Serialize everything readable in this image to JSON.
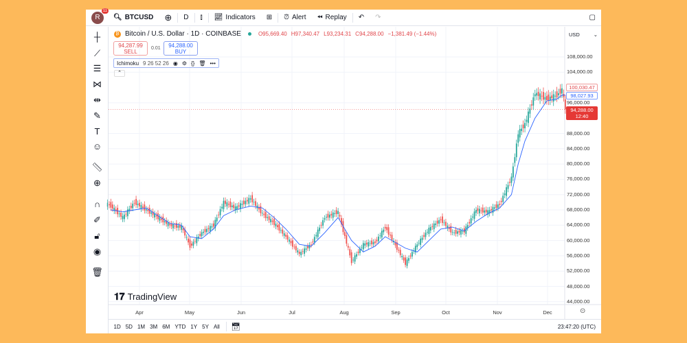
{
  "topbar": {
    "avatar_letter": "R",
    "notifications": "11",
    "symbol": "BTCUSD",
    "interval": "D",
    "indicators": "Indicators",
    "alert": "Alert",
    "replay": "Replay"
  },
  "legend": {
    "title": "Bitcoin / U.S. Dollar · 1D · COINBASE",
    "open": "O95,669.40",
    "high": "H97,340.47",
    "low": "L93,234.31",
    "close": "C94,288.00",
    "change": "−1,381.49 (−1.44%)"
  },
  "trade": {
    "sell_price": "94,287.99",
    "sell_label": "SELL",
    "spread": "0.01",
    "buy_price": "94,288.00",
    "buy_label": "BUY"
  },
  "indicator": {
    "name": "Ichimoku",
    "params": "9 26 52 26"
  },
  "axis": {
    "currency": "USD",
    "labels": [
      "108,000.00",
      "104,000.00",
      "96,000.00",
      "88,000.00",
      "84,000.00",
      "80,000.00",
      "76,000.00",
      "72,000.00",
      "68,000.00",
      "64,000.00",
      "60,000.00",
      "56,000.00",
      "52,000.00",
      "48,000.00",
      "44,000.00"
    ],
    "price_labels": {
      "red_line": "100,030.47",
      "blue_line": "98,027.93",
      "last": "94,288.00",
      "countdown": "12:40"
    }
  },
  "months": [
    "Apr",
    "May",
    "Jun",
    "Jul",
    "Aug",
    "Sep",
    "Oct",
    "Nov",
    "Dec"
  ],
  "bottom": {
    "ranges": [
      "1D",
      "5D",
      "1M",
      "3M",
      "6M",
      "YTD",
      "1Y",
      "5Y",
      "All"
    ],
    "clock": "23:47:20 (UTC)"
  },
  "logo": "TradingView",
  "colors": {
    "up": "#26a69a",
    "down": "#ef5350",
    "ichimoku": "#2962ff",
    "accent": "#2962ff"
  },
  "chart_data": {
    "type": "candlestick",
    "symbol": "BTCUSD",
    "ylim": [
      44000,
      110000
    ],
    "dates": [
      "2024-03-15",
      "2024-03-22",
      "2024-03-29",
      "2024-04-05",
      "2024-04-12",
      "2024-04-19",
      "2024-04-26",
      "2024-05-01",
      "2024-05-08",
      "2024-05-15",
      "2024-05-21",
      "2024-05-28",
      "2024-06-06",
      "2024-06-13",
      "2024-06-20",
      "2024-06-27",
      "2024-07-05",
      "2024-07-12",
      "2024-07-20",
      "2024-07-28",
      "2024-08-05",
      "2024-08-12",
      "2024-08-19",
      "2024-08-25",
      "2024-09-06",
      "2024-09-13",
      "2024-09-20",
      "2024-09-27",
      "2024-10-04",
      "2024-10-11",
      "2024-10-18",
      "2024-10-25",
      "2024-11-01",
      "2024-11-08",
      "2024-11-12",
      "2024-11-16",
      "2024-11-22",
      "2024-11-29",
      "2024-12-05",
      "2024-12-08",
      "2024-12-10"
    ],
    "closes": [
      69000,
      66000,
      70000,
      68000,
      66000,
      64000,
      63500,
      58500,
      62000,
      64000,
      70000,
      68500,
      71000,
      67000,
      64500,
      61000,
      56500,
      59000,
      66000,
      67500,
      54500,
      59000,
      59500,
      63500,
      54000,
      59000,
      63000,
      65500,
      62000,
      62500,
      68000,
      67500,
      69500,
      76500,
      88000,
      90500,
      98500,
      97000,
      98000,
      99500,
      94288
    ],
    "ichimoku_conversion": [
      68000,
      67500,
      68000,
      68500,
      66500,
      64500,
      64000,
      61000,
      60500,
      63000,
      66500,
      68000,
      69000,
      68500,
      66000,
      63000,
      59000,
      58500,
      62000,
      66000,
      60000,
      57000,
      58500,
      61000,
      58000,
      57000,
      60000,
      63000,
      63500,
      62500,
      65000,
      67000,
      68500,
      72000,
      80000,
      86000,
      92000,
      96500,
      97000,
      98000,
      98028
    ]
  }
}
